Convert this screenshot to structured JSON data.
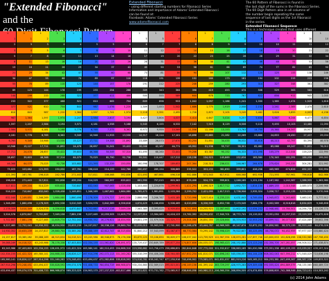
{
  "header": {
    "title_line1": "\"Extended Fibonacci\"",
    "title_line1_suffix": " and the",
    "title_line2": "60 Digit Fibonacci Pattern"
  },
  "description": {
    "heading": "Extended Fibonacci",
    "lines": [
      "- using different starting numbers for Fibonacci Series",
      "Information and importance of Adams' Extended Fibonacci can be found at:",
      "Facebook: Adams' Extended Fibonacci Series",
      "www.adamsfibonacci.com"
    ]
  },
  "note": {
    "lines": [
      "The 60 Pattern of Fibonacci is found in",
      "the last digit of the sums in the Fibonacci Series.",
      "The 60 Digit Pattern also in all columns of",
      "the number begin repeating the same",
      "sequence of last digits as the 1st Fibonacci",
      "in the series."
    ],
    "heading2": "Extended Fibonacci Sequence",
    "lines2": [
      "This is a technique created that uses different",
      "starting numbers to begin the Fibonacci Sequence."
    ]
  },
  "footer": {
    "credit": "(c) 2014   John Adams"
  },
  "colors": {
    "header": [
      "#ff3b3b",
      "#ff7f00",
      "#ffd400",
      "#4be04b",
      "#22d0ff",
      "#2f6bff",
      "#b044ff",
      "#ff44c8",
      "#ffffff",
      "#bbbbbb",
      "#ff3b3b",
      "#ff7f00",
      "#ffd400",
      "#4be04b",
      "#22d0ff",
      "#2f6bff",
      "#b044ff",
      "#ff44c8",
      "#ffffff",
      "#bbbbbb"
    ],
    "dark": [
      "#3a0d0d",
      "#3a2408",
      "#3a3208",
      "#0e3a10",
      "#0a2c38",
      "#0a1a3a",
      "#2a0e3a",
      "#3a0a30",
      "#2a2a2a",
      "#1a1a1a",
      "#3a0d0d",
      "#3a2408",
      "#3a3208",
      "#0e3a10",
      "#0a2c38",
      "#0a1a3a",
      "#2a0e3a",
      "#3a0a30",
      "#2a2a2a",
      "#1a1a1a"
    ],
    "highlight": "#ffd000"
  },
  "table": {
    "header": [
      "1",
      "1",
      "1",
      "1",
      "1",
      "1",
      "1",
      "1",
      "1",
      "1",
      "1",
      "1",
      "1",
      "1",
      "1",
      "1",
      "1",
      "1",
      "1",
      "1"
    ],
    "rows": [
      [
        "1",
        "1",
        "2",
        "2",
        "3",
        "3",
        "4",
        "4",
        "5",
        "5",
        "6",
        "6",
        "7",
        "7",
        "8",
        "8",
        "9",
        "9",
        "10",
        "10"
      ],
      [
        "2",
        "3",
        "3",
        "4",
        "4",
        "5",
        "5",
        "6",
        "6",
        "7",
        "7",
        "8",
        "8",
        "9",
        "9",
        "10",
        "10",
        "11",
        "11",
        "12"
      ],
      [
        "3",
        "4",
        "5",
        "6",
        "7",
        "8",
        "9",
        "10",
        "11",
        "12",
        "13",
        "14",
        "15",
        "16",
        "17",
        "18",
        "19",
        "20",
        "21",
        "22"
      ],
      [
        "5",
        "7",
        "8",
        "10",
        "11",
        "13",
        "14",
        "16",
        "17",
        "19",
        "20",
        "22",
        "23",
        "25",
        "26",
        "28",
        "29",
        "31",
        "32",
        "34"
      ],
      [
        "8",
        "11",
        "13",
        "16",
        "18",
        "21",
        "23",
        "26",
        "28",
        "31",
        "33",
        "36",
        "38",
        "41",
        "43",
        "46",
        "48",
        "51",
        "53",
        "56"
      ],
      [
        "13",
        "18",
        "21",
        "26",
        "29",
        "34",
        "37",
        "42",
        "45",
        "50",
        "53",
        "58",
        "61",
        "66",
        "69",
        "74",
        "77",
        "82",
        "85",
        "90"
      ],
      [
        "21",
        "29",
        "34",
        "42",
        "47",
        "55",
        "60",
        "68",
        "73",
        "81",
        "86",
        "94",
        "99",
        "107",
        "112",
        "120",
        "125",
        "133",
        "138",
        "146"
      ],
      [
        "34",
        "47",
        "55",
        "68",
        "76",
        "89",
        "97",
        "110",
        "118",
        "131",
        "139",
        "152",
        "160",
        "173",
        "181",
        "194",
        "202",
        "215",
        "223",
        "236"
      ],
      [
        "55",
        "76",
        "89",
        "110",
        "123",
        "144",
        "157",
        "178",
        "191",
        "212",
        "225",
        "246",
        "259",
        "280",
        "293",
        "314",
        "327",
        "348",
        "361",
        "382"
      ],
      [
        "89",
        "123",
        "144",
        "178",
        "199",
        "233",
        "254",
        "288",
        "309",
        "343",
        "364",
        "398",
        "419",
        "453",
        "474",
        "508",
        "529",
        "563",
        "584",
        "618"
      ],
      [
        "144",
        "199",
        "233",
        "288",
        "322",
        "377",
        "411",
        "466",
        "500",
        "555",
        "589",
        "644",
        "678",
        "733",
        "767",
        "822",
        "856",
        "911",
        "945",
        "1,000"
      ],
      [
        "233",
        "322",
        "377",
        "466",
        "521",
        "610",
        "665",
        "754",
        "809",
        "898",
        "953",
        "1,042",
        "1,097",
        "1,186",
        "1,241",
        "1,330",
        "1,385",
        "1,474",
        "1,529",
        "1,618"
      ],
      [
        "377",
        "521",
        "610",
        "754",
        "843",
        "987",
        "1,076",
        "1,220",
        "1,309",
        "1,453",
        "1,542",
        "1,686",
        "1,775",
        "1,919",
        "2,008",
        "2,152",
        "2,241",
        "2,385",
        "2,474",
        "2,618"
      ],
      [
        "610",
        "843",
        "987",
        "1,220",
        "1,364",
        "1,597",
        "1,741",
        "1,974",
        "2,118",
        "2,351",
        "2,495",
        "2,728",
        "2,872",
        "3,105",
        "3,249",
        "3,482",
        "3,626",
        "3,859",
        "4,003",
        "4,236"
      ],
      [
        "987",
        "1,364",
        "1,597",
        "1,974",
        "2,207",
        "2,584",
        "2,817",
        "3,194",
        "3,427",
        "3,804",
        "4,037",
        "4,414",
        "4,647",
        "5,024",
        "5,257",
        "5,634",
        "5,867",
        "6,244",
        "6,477",
        "6,854"
      ],
      [
        "1,597",
        "2,207",
        "2,584",
        "3,194",
        "3,571",
        "4,181",
        "4,558",
        "5,168",
        "5,545",
        "6,155",
        "6,532",
        "7,142",
        "7,519",
        "8,129",
        "8,506",
        "9,116",
        "9,493",
        "10,103",
        "10,480",
        "11,090"
      ],
      [
        "2,584",
        "3,571",
        "4,181",
        "5,168",
        "5,778",
        "6,765",
        "7,375",
        "8,362",
        "8,972",
        "9,959",
        "10,569",
        "11,556",
        "12,166",
        "13,153",
        "13,763",
        "14,750",
        "15,360",
        "16,347",
        "16,957",
        "17,944"
      ],
      [
        "4,181",
        "5,778",
        "6,765",
        "8,362",
        "9,349",
        "10,946",
        "11,933",
        "13,530",
        "14,517",
        "16,114",
        "17,101",
        "18,698",
        "19,685",
        "21,282",
        "22,269",
        "23,866",
        "24,853",
        "26,450",
        "27,437",
        "29,034"
      ],
      [
        "6,765",
        "9,349",
        "10,946",
        "13,530",
        "15,127",
        "17,711",
        "19,308",
        "21,892",
        "23,489",
        "26,073",
        "27,670",
        "30,254",
        "31,851",
        "34,435",
        "36,032",
        "38,616",
        "40,213",
        "42,797",
        "44,394",
        "46,978"
      ],
      [
        "10,946",
        "15,127",
        "17,711",
        "21,892",
        "24,476",
        "28,657",
        "31,241",
        "35,422",
        "38,006",
        "42,187",
        "44,771",
        "48,952",
        "51,536",
        "55,717",
        "58,301",
        "62,482",
        "65,066",
        "69,247",
        "71,831",
        "76,012"
      ],
      [
        "17,711",
        "24,476",
        "28,657",
        "35,422",
        "39,603",
        "46,368",
        "50,549",
        "57,314",
        "61,495",
        "68,260",
        "72,441",
        "79,206",
        "83,387",
        "90,152",
        "94,333",
        "101,098",
        "105,279",
        "112,044",
        "116,225",
        "122,990"
      ],
      [
        "28,657",
        "39,603",
        "46,368",
        "57,314",
        "64,079",
        "75,025",
        "81,790",
        "92,736",
        "99,501",
        "110,447",
        "117,212",
        "128,158",
        "134,923",
        "145,869",
        "152,634",
        "163,580",
        "170,345",
        "181,291",
        "188,056",
        "199,002"
      ],
      [
        "46,368",
        "64,079",
        "75,025",
        "92,736",
        "103,682",
        "121,393",
        "132,339",
        "150,050",
        "160,996",
        "178,707",
        "189,653",
        "207,364",
        "218,310",
        "236,021",
        "246,967",
        "264,678",
        "275,624",
        "293,335",
        "304,281",
        "321,992"
      ],
      [
        "75,025",
        "103,682",
        "121,393",
        "150,050",
        "167,761",
        "196,418",
        "214,129",
        "242,786",
        "260,497",
        "289,154",
        "306,865",
        "335,522",
        "353,233",
        "381,890",
        "399,601",
        "428,258",
        "445,969",
        "474,626",
        "492,337",
        "520,994"
      ],
      [
        "121,393",
        "167,761",
        "196,418",
        "242,786",
        "271,443",
        "317,811",
        "346,468",
        "392,836",
        "421,493",
        "467,861",
        "496,518",
        "542,886",
        "571,543",
        "617,911",
        "646,568",
        "692,936",
        "721,593",
        "767,961",
        "796,618",
        "842,986"
      ],
      [
        "196,418",
        "271,443",
        "317,811",
        "392,836",
        "439,204",
        "514,229",
        "560,597",
        "635,622",
        "681,990",
        "757,015",
        "803,383",
        "878,408",
        "924,776",
        "999,801",
        "1,046,169",
        "1,121,194",
        "1,167,562",
        "1,242,587",
        "1,288,955",
        "1,363,980"
      ],
      [
        "317,811",
        "439,204",
        "514,229",
        "635,622",
        "710,647",
        "832,040",
        "907,065",
        "1,028,458",
        "1,103,483",
        "1,224,876",
        "1,299,901",
        "1,421,294",
        "1,496,319",
        "1,617,712",
        "1,692,737",
        "1,814,130",
        "1,889,155",
        "2,010,548",
        "2,085,573",
        "2,206,966"
      ],
      [
        "514,229",
        "710,647",
        "832,040",
        "1,028,458",
        "1,149,851",
        "1,346,269",
        "1,467,662",
        "1,664,080",
        "1,785,473",
        "1,981,891",
        "2,103,284",
        "2,299,702",
        "2,421,095",
        "2,617,513",
        "2,738,906",
        "2,935,324",
        "3,056,717",
        "3,253,135",
        "3,374,528",
        "3,570,946"
      ],
      [
        "832,040",
        "1,149,851",
        "1,346,269",
        "1,664,080",
        "1,860,498",
        "2,178,309",
        "2,374,727",
        "2,692,538",
        "2,888,956",
        "3,206,767",
        "3,403,185",
        "3,720,996",
        "3,917,414",
        "4,235,225",
        "4,431,643",
        "4,749,454",
        "4,945,872",
        "5,263,683",
        "5,460,101",
        "5,777,912"
      ],
      [
        "1,346,269",
        "1,860,498",
        "2,178,309",
        "2,692,538",
        "3,010,349",
        "3,524,578",
        "3,842,389",
        "4,356,618",
        "4,674,429",
        "5,188,658",
        "5,506,469",
        "6,020,698",
        "6,338,509",
        "6,852,738",
        "7,170,549",
        "7,684,778",
        "8,002,589",
        "8,516,818",
        "8,834,629",
        "9,348,858"
      ],
      [
        "2,178,309",
        "3,010,349",
        "3,524,578",
        "4,356,618",
        "4,870,847",
        "5,702,887",
        "6,217,116",
        "7,049,156",
        "7,563,385",
        "8,395,425",
        "8,909,654",
        "9,741,694",
        "10,255,923",
        "11,087,963",
        "11,602,192",
        "12,434,232",
        "12,948,461",
        "13,780,501",
        "14,294,730",
        "15,126,770"
      ],
      [
        "3,524,578",
        "4,870,847",
        "5,702,887",
        "7,049,156",
        "7,881,196",
        "9,227,465",
        "10,059,505",
        "11,405,774",
        "12,237,814",
        "13,584,083",
        "14,416,123",
        "15,762,392",
        "16,594,432",
        "17,940,701",
        "18,772,741",
        "20,119,010",
        "20,951,050",
        "22,297,319",
        "23,129,359",
        "24,475,628"
      ],
      [
        "5,702,887",
        "7,881,196",
        "9,227,465",
        "11,405,774",
        "12,752,043",
        "14,930,352",
        "16,276,621",
        "18,454,930",
        "19,801,199",
        "21,979,508",
        "23,325,777",
        "25,504,086",
        "26,850,355",
        "29,028,664",
        "30,374,933",
        "32,553,242",
        "33,899,511",
        "36,077,820",
        "37,424,089",
        "39,602,398"
      ],
      [
        "9,227,465",
        "12,752,043",
        "14,930,352",
        "18,454,930",
        "20,633,239",
        "24,157,817",
        "26,336,126",
        "29,860,704",
        "32,039,013",
        "35,563,591",
        "37,741,900",
        "41,266,478",
        "43,444,787",
        "46,969,365",
        "49,147,674",
        "52,672,252",
        "54,850,561",
        "58,375,139",
        "60,553,448",
        "64,078,026"
      ],
      [
        "14,930,352",
        "20,633,239",
        "24,157,817",
        "29,860,704",
        "33,385,282",
        "39,088,169",
        "42,612,747",
        "48,315,634",
        "51,840,212",
        "57,543,099",
        "61,067,677",
        "66,770,564",
        "70,295,142",
        "75,998,029",
        "79,522,607",
        "85,225,494",
        "88,750,072",
        "94,452,959",
        "97,977,537",
        "103,680,424"
      ],
      [
        "24,157,817",
        "33,385,282",
        "39,088,169",
        "48,315,634",
        "54,018,521",
        "63,245,986",
        "68,948,873",
        "78,176,338",
        "83,879,225",
        "93,106,690",
        "98,809,577",
        "108,037,042",
        "113,739,929",
        "122,967,394",
        "128,670,281",
        "137,897,746",
        "143,600,633",
        "152,828,098",
        "158,530,985",
        "167,758,450"
      ],
      [
        "39,088,169",
        "54,018,521",
        "63,245,986",
        "78,176,338",
        "87,403,803",
        "102,334,155",
        "111,561,620",
        "126,491,972",
        "135,719,437",
        "150,649,789",
        "159,877,254",
        "174,807,606",
        "184,035,071",
        "198,965,423",
        "208,192,888",
        "223,123,240",
        "232,350,705",
        "247,281,057",
        "256,508,522",
        "271,438,874"
      ],
      [
        "63,245,986",
        "87,403,803",
        "102,334,155",
        "126,491,972",
        "141,422,324",
        "165,580,141",
        "180,510,493",
        "204,668,310",
        "219,598,662",
        "243,756,479",
        "258,686,831",
        "282,844,648",
        "297,775,000",
        "321,932,817",
        "336,863,169",
        "361,020,986",
        "375,951,338",
        "400,109,155",
        "415,039,507",
        "439,197,324"
      ],
      [
        "102,334,155",
        "141,422,324",
        "165,580,141",
        "204,668,310",
        "228,826,127",
        "267,914,296",
        "292,072,113",
        "331,160,282",
        "355,318,099",
        "394,406,268",
        "418,564,085",
        "457,652,254",
        "481,810,071",
        "520,898,240",
        "545,056,057",
        "584,144,226",
        "608,302,043",
        "647,390,212",
        "671,548,029",
        "710,636,198"
      ],
      [
        "165,580,141",
        "228,826,127",
        "267,914,296",
        "331,160,282",
        "370,248,451",
        "433,494,437",
        "472,582,606",
        "535,828,592",
        "574,916,761",
        "638,162,747",
        "677,250,916",
        "740,496,902",
        "779,585,071",
        "842,831,057",
        "881,919,226",
        "945,165,212",
        "984,253,381",
        "1,047,499,367",
        "1,086,587,536",
        "1,149,833,522"
      ],
      [
        "267,914,296",
        "370,248,451",
        "433,494,437",
        "535,828,592",
        "599,074,578",
        "701,408,733",
        "764,654,719",
        "866,988,874",
        "930,234,860",
        "1,032,569,015",
        "1,095,815,001",
        "1,198,149,156",
        "1,261,395,142",
        "1,363,729,297",
        "1,426,975,283",
        "1,529,309,438",
        "1,592,555,424",
        "1,694,889,579",
        "1,758,135,565",
        "1,860,469,720"
      ],
      [
        "433,494,437",
        "599,074,578",
        "701,408,733",
        "866,988,874",
        "969,323,029",
        "1,134,903,170",
        "1,237,237,325",
        "1,402,817,466",
        "1,505,151,621",
        "1,670,731,762",
        "1,773,065,917",
        "1,938,646,058",
        "2,040,980,213",
        "2,206,560,354",
        "2,308,894,509",
        "2,474,474,650",
        "2,576,808,805",
        "2,742,388,946",
        "2,844,723,101",
        "3,010,303,242"
      ]
    ]
  }
}
